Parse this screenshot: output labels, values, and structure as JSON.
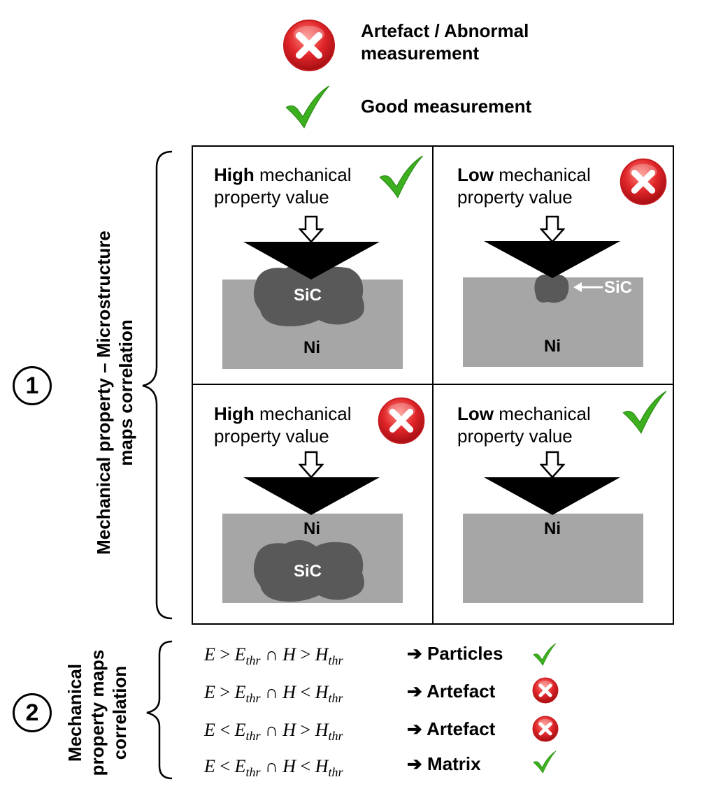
{
  "legend": {
    "artefact_label": "Artefact / Abnormal measurement",
    "artefact_line1": "Artefact / Abnormal",
    "artefact_line2": "measurement",
    "good_label": "Good measurement"
  },
  "section1": {
    "number": "1",
    "vertical_label_line1": "Mechanical property – Microstructure",
    "vertical_label_line2": "maps correlation",
    "cells": [
      {
        "bold": "High",
        "rest": " mechanical",
        "line2": "property value",
        "status": "good",
        "particle_label": "SiC",
        "matrix_label": "Ni"
      },
      {
        "bold": "Low",
        "rest": " mechanical",
        "line2": "property value",
        "status": "artefact",
        "particle_label": "SiC",
        "matrix_label": "Ni"
      },
      {
        "bold": "High",
        "rest": " mechanical",
        "line2": "property value",
        "status": "artefact",
        "particle_label": "SiC",
        "matrix_label": "Ni"
      },
      {
        "bold": "Low",
        "rest": " mechanical",
        "line2": "property value",
        "status": "good",
        "matrix_label": "Ni"
      }
    ]
  },
  "section2": {
    "number": "2",
    "vertical_label_line1": "Mechanical",
    "vertical_label_line2": "property maps",
    "vertical_label_line3": "correlation",
    "rules": [
      {
        "e_op": ">",
        "h_op": ">",
        "result": "Particles",
        "status": "good"
      },
      {
        "e_op": ">",
        "h_op": "<",
        "result": "Artefact",
        "status": "artefact"
      },
      {
        "e_op": "<",
        "h_op": ">",
        "result": "Artefact",
        "status": "artefact"
      },
      {
        "e_op": "<",
        "h_op": "<",
        "result": "Matrix",
        "status": "good"
      }
    ],
    "arrow_glyph": "➔",
    "e_symbol": "E",
    "h_symbol": "H",
    "thr_sub": "thr",
    "intersect": "∩"
  },
  "colors": {
    "matrix_gray": "#a6a6a6",
    "particle_gray": "#595959",
    "check_green": "#3cb01f",
    "cross_red": "#e0262a"
  }
}
